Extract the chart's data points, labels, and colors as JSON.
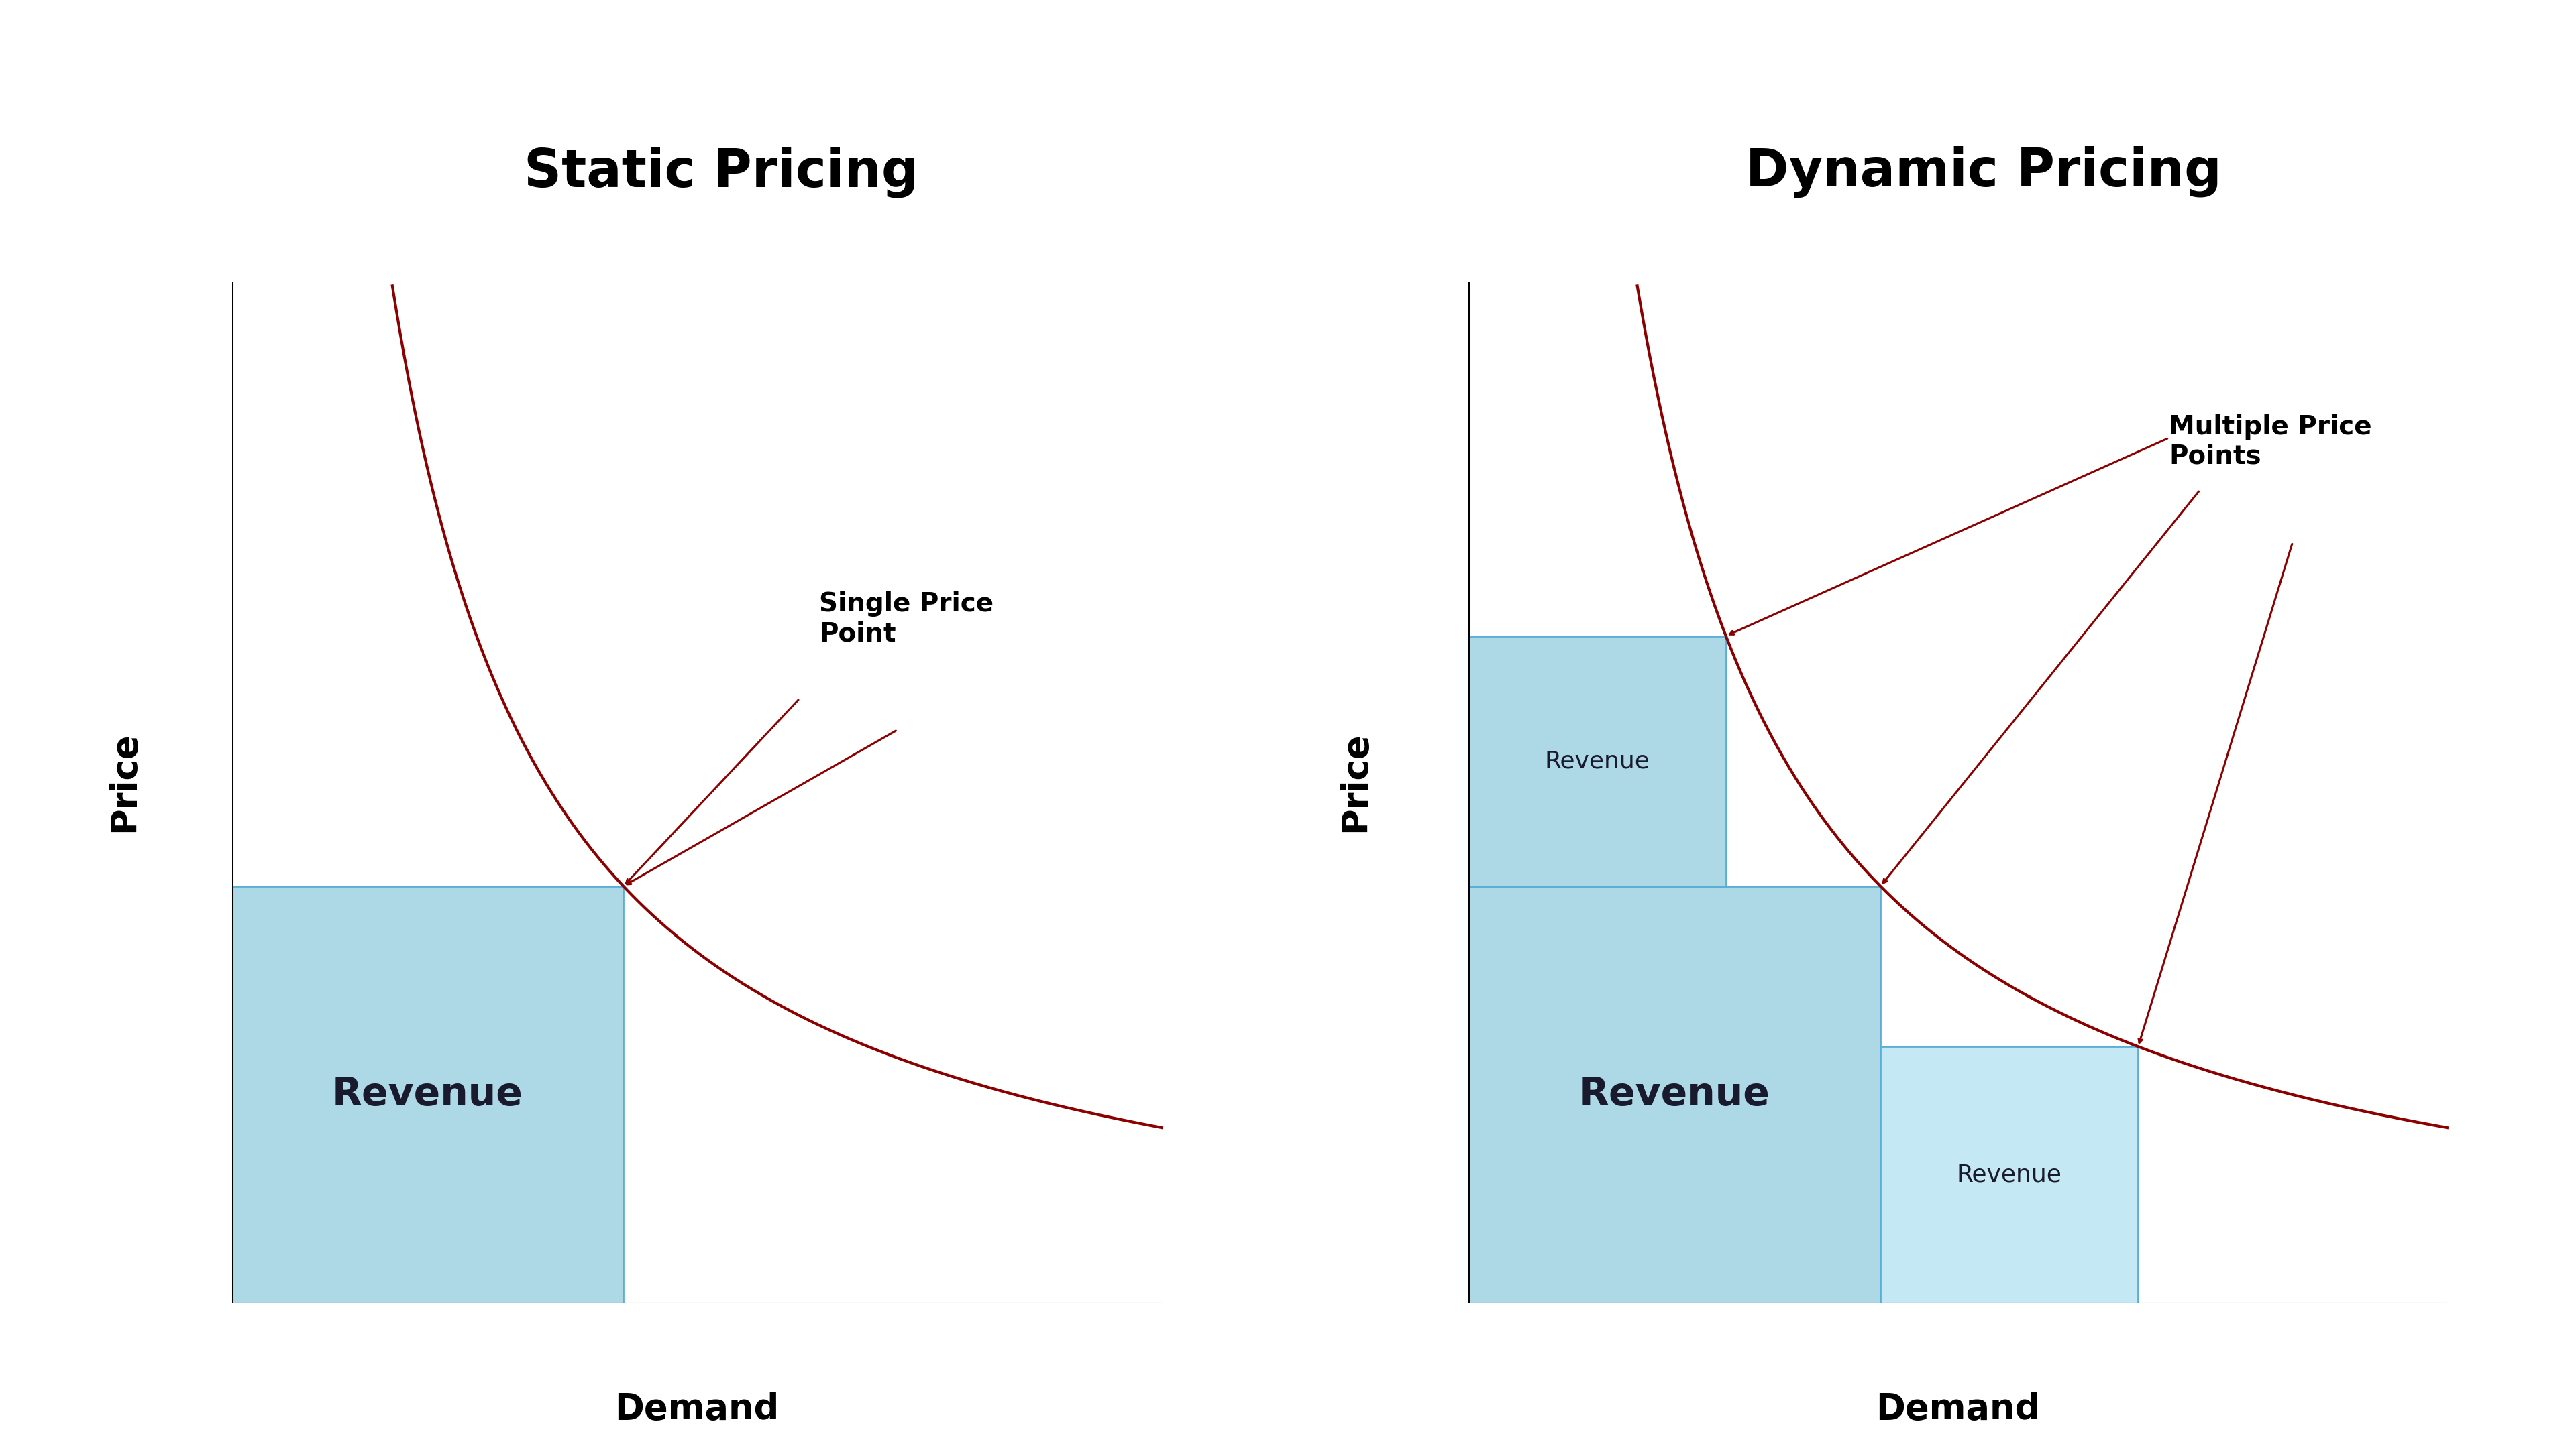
{
  "bg_color": "#ffffff",
  "left_title": "Static Pricing",
  "right_title": "Dynamic Pricing",
  "title_fontsize": 56,
  "title_fontweight": "bold",
  "axis_label_fontsize": 38,
  "revenue_label_large_fontsize": 42,
  "revenue_label_small_fontsize": 26,
  "annotation_fontsize": 28,
  "curve_color": "#8b0000",
  "curve_linewidth": 3.0,
  "rect_fill_color": "#add8e6",
  "rect_fill_color_light": "#c5e8f5",
  "rect_edge_color": "#5bafd6",
  "arrow_color": "#8b0000",
  "axis_color": "#000000",
  "left_annotation": "Single Price\nPoint",
  "right_annotation": "Multiple Price\nPoints"
}
